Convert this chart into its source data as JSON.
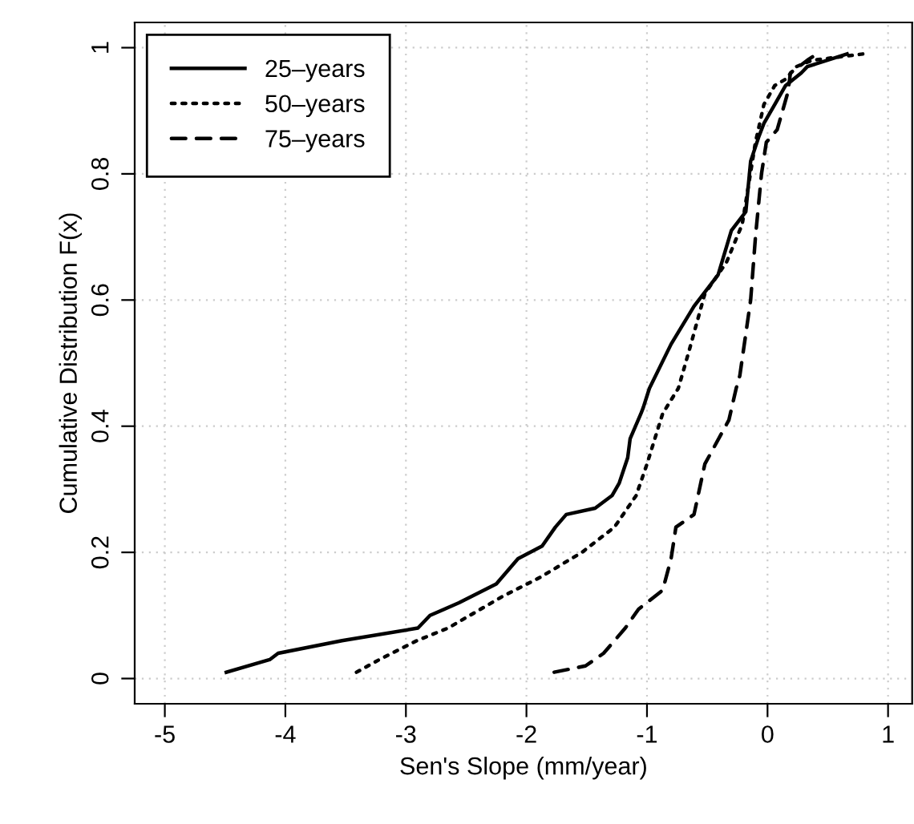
{
  "chart_data": {
    "type": "line",
    "xlabel": "Sen's Slope (mm/year)",
    "ylabel": "Cumulative Distribution F(x)",
    "xlim": [
      -5.25,
      1.2
    ],
    "ylim": [
      -0.04,
      1.04
    ],
    "xticks": [
      -5,
      -4,
      -3,
      -2,
      -1,
      0,
      1
    ],
    "yticks": [
      0,
      0.2,
      0.4,
      0.6,
      0.8,
      1
    ],
    "grid": true,
    "legend": "top left",
    "marker": "none",
    "series": [
      {
        "name": "25–years",
        "color": "#000000",
        "line_style": "solid",
        "x": [
          -4.49,
          -4.13,
          -4.06,
          -3.53,
          -2.9,
          -2.8,
          -2.56,
          -2.25,
          -2.16,
          -2.07,
          -1.87,
          -1.76,
          -1.67,
          -1.43,
          -1.29,
          -1.23,
          -1.16,
          -1.14,
          -1.05,
          -1.03,
          -0.98,
          -0.8,
          -0.61,
          -0.41,
          -0.3,
          -0.18,
          -0.14,
          -0.07,
          -0.03,
          0.06,
          0.15,
          0.28,
          0.33,
          0.66
        ],
        "values": [
          0.01,
          0.03,
          0.04,
          0.06,
          0.08,
          0.1,
          0.12,
          0.15,
          0.17,
          0.19,
          0.21,
          0.24,
          0.26,
          0.27,
          0.29,
          0.31,
          0.35,
          0.38,
          0.42,
          0.43,
          0.46,
          0.53,
          0.59,
          0.64,
          0.71,
          0.74,
          0.82,
          0.86,
          0.88,
          0.91,
          0.94,
          0.96,
          0.97,
          0.99
        ]
      },
      {
        "name": "50–years",
        "color": "#000000",
        "line_style": "dotted",
        "x": [
          -3.41,
          -3.22,
          -2.91,
          -2.65,
          -2.2,
          -1.89,
          -1.54,
          -1.27,
          -1.09,
          -1.0,
          -0.87,
          -0.74,
          -0.65,
          -0.52,
          -0.34,
          -0.21,
          -0.1,
          -0.03,
          0.06,
          0.15,
          0.24,
          0.37,
          0.79
        ],
        "values": [
          0.01,
          0.03,
          0.06,
          0.08,
          0.13,
          0.16,
          0.2,
          0.24,
          0.29,
          0.34,
          0.42,
          0.46,
          0.52,
          0.61,
          0.66,
          0.72,
          0.85,
          0.91,
          0.94,
          0.95,
          0.97,
          0.98,
          0.99
        ]
      },
      {
        "name": "75–years",
        "color": "#000000",
        "line_style": "dashed",
        "x": [
          -1.77,
          -1.51,
          -1.36,
          -1.18,
          -1.07,
          -0.87,
          -0.8,
          -0.76,
          -0.61,
          -0.52,
          -0.32,
          -0.26,
          -0.23,
          -0.14,
          -0.1,
          -0.05,
          -0.01,
          0.08,
          0.17,
          0.19,
          0.33,
          0.41
        ],
        "values": [
          0.01,
          0.02,
          0.04,
          0.08,
          0.11,
          0.14,
          0.19,
          0.24,
          0.26,
          0.34,
          0.41,
          0.46,
          0.48,
          0.6,
          0.7,
          0.8,
          0.85,
          0.87,
          0.93,
          0.96,
          0.98,
          0.99
        ]
      }
    ]
  }
}
